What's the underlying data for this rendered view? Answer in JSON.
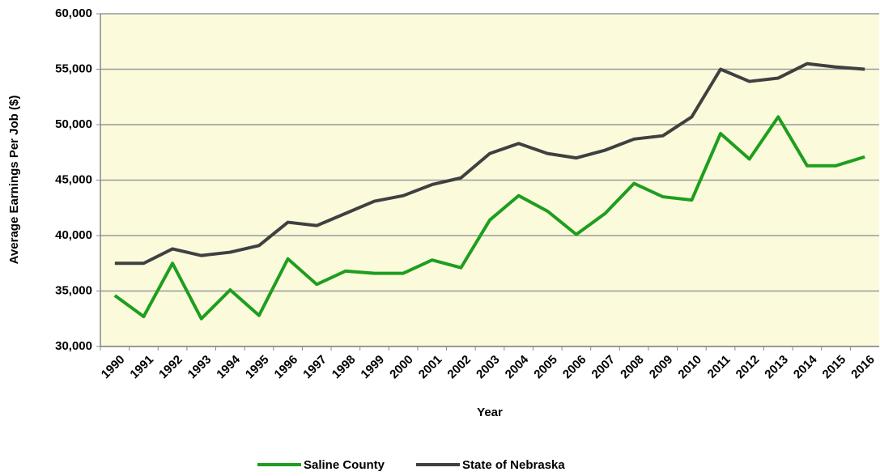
{
  "chart_data": {
    "type": "line",
    "x_label": "Year",
    "y_label": "Average Earnings Per Job ($)",
    "categories": [
      "1990",
      "1991",
      "1992",
      "1993",
      "1994",
      "1995",
      "1996",
      "1997",
      "1998",
      "1999",
      "2000",
      "2001",
      "2002",
      "2003",
      "2004",
      "2005",
      "2006",
      "2007",
      "2008",
      "2009",
      "2010",
      "2011",
      "2012",
      "2013",
      "2014",
      "2015",
      "2016"
    ],
    "series": [
      {
        "name": "Saline County",
        "color": "#1e9e1e",
        "values": [
          34600,
          32700,
          37500,
          32500,
          35100,
          32800,
          37900,
          35600,
          36800,
          36600,
          36600,
          37800,
          37100,
          41400,
          43600,
          42200,
          40100,
          42000,
          44700,
          43500,
          43200,
          49200,
          46900,
          50700,
          46300,
          46300,
          47100
        ]
      },
      {
        "name": "State of Nebraska",
        "color": "#404040",
        "values": [
          37500,
          37500,
          38800,
          38200,
          38500,
          39100,
          41200,
          40900,
          42000,
          43100,
          43600,
          44600,
          45200,
          47400,
          48300,
          47400,
          47000,
          47700,
          48700,
          49000,
          50700,
          55000,
          53900,
          54200,
          55500,
          55200,
          55000
        ]
      }
    ],
    "ylim": [
      30000,
      60000
    ],
    "yticks": [
      {
        "value": 30000,
        "label": "30,000"
      },
      {
        "value": 35000,
        "label": "35,000"
      },
      {
        "value": 40000,
        "label": "40,000"
      },
      {
        "value": 45000,
        "label": "45,000"
      },
      {
        "value": 50000,
        "label": "50,000"
      },
      {
        "value": 55000,
        "label": "55,000"
      },
      {
        "value": 60000,
        "label": "60,000"
      }
    ],
    "grid": true,
    "legend": "bottom",
    "plot_background": "#fbfbdc"
  }
}
